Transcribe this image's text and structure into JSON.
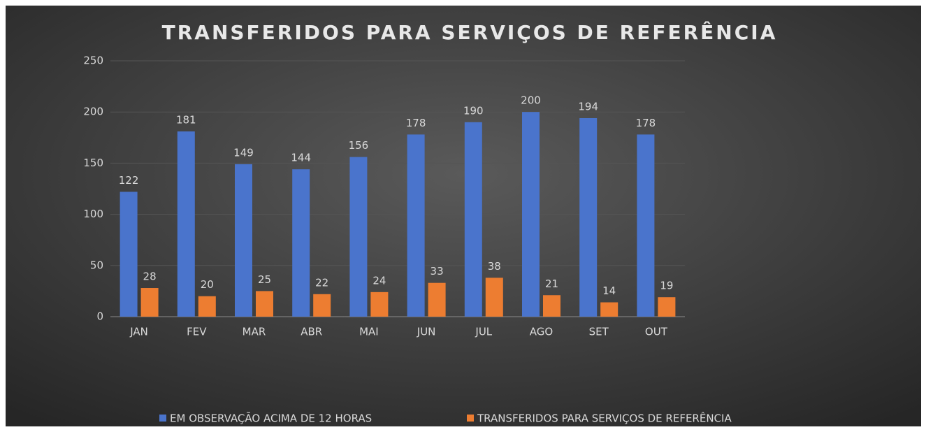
{
  "chart_data": {
    "type": "bar",
    "title": "TRANSFERIDOS PARA SERVIÇOS DE REFERÊNCIA",
    "categories": [
      "JAN",
      "FEV",
      "MAR",
      "ABR",
      "MAI",
      "JUN",
      "JUL",
      "AGO",
      "SET",
      "OUT"
    ],
    "series": [
      {
        "name": "EM OBSERVAÇÃO ACIMA DE 12 HORAS",
        "color": "#4a74cc",
        "values": [
          122,
          181,
          149,
          144,
          156,
          178,
          190,
          200,
          194,
          178
        ]
      },
      {
        "name": "TRANSFERIDOS PARA SERVIÇOS DE REFERÊNCIA",
        "color": "#ed7d31",
        "values": [
          28,
          20,
          25,
          22,
          24,
          33,
          38,
          21,
          14,
          19
        ]
      }
    ],
    "ylim": [
      0,
      250
    ],
    "yticks": [
      0,
      50,
      100,
      150,
      200,
      250
    ],
    "grid": true,
    "legend": "bottom"
  }
}
